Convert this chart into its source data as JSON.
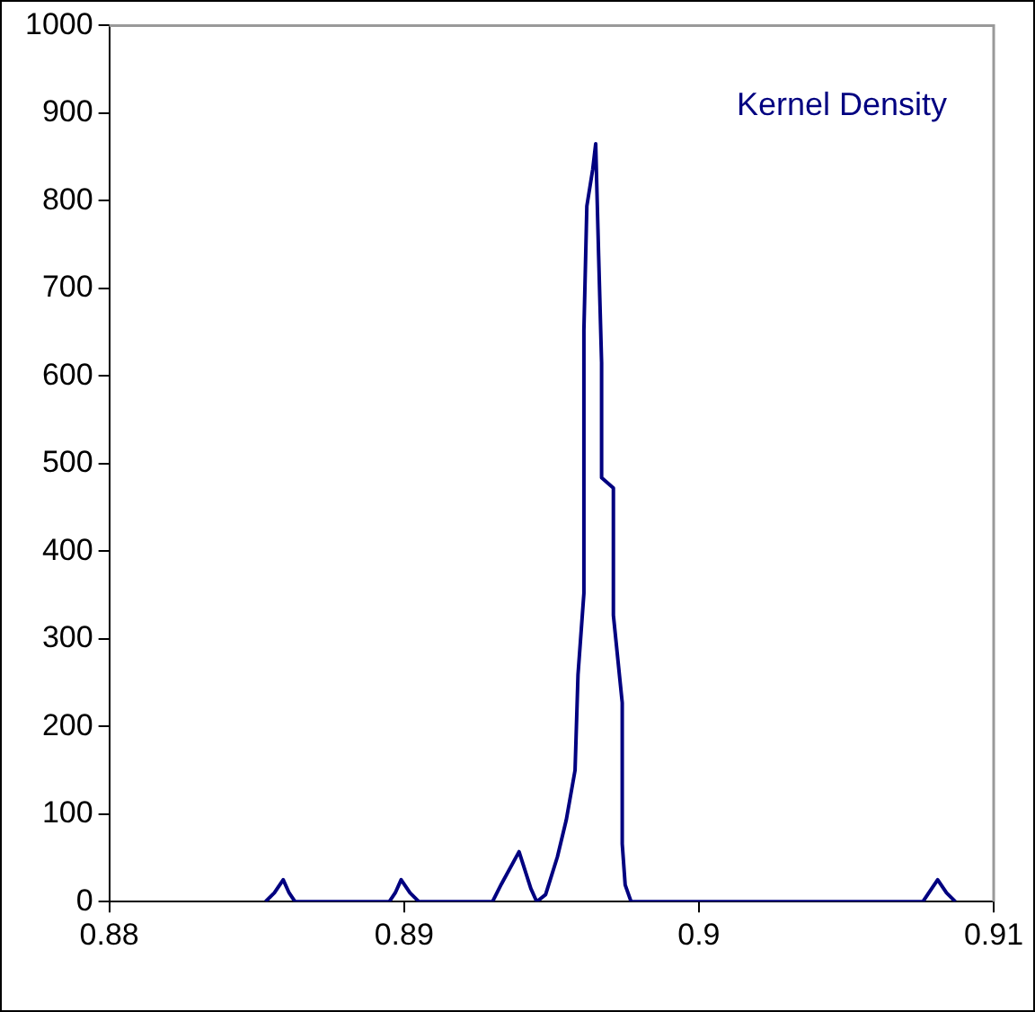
{
  "chart_data": {
    "type": "line",
    "x": [
      0.8853,
      0.8856,
      0.8859,
      0.8861,
      0.8863,
      0.8895,
      0.8897,
      0.8899,
      0.8902,
      0.8905,
      0.893,
      0.8933,
      0.8939,
      0.8943,
      0.8945,
      0.8948,
      0.8952,
      0.8955,
      0.8958,
      0.8959,
      0.8961,
      0.8961,
      0.8962,
      0.8964,
      0.8965,
      0.8966,
      0.8967,
      0.8967,
      0.8967,
      0.8971,
      0.8971,
      0.8974,
      0.8974,
      0.8975,
      0.8977,
      0.9076,
      0.9078,
      0.9081,
      0.9084,
      0.9087
    ],
    "series": [
      {
        "name": "Kernel Density",
        "color": "#000080",
        "values": [
          0,
          10,
          25,
          10,
          0,
          0,
          10,
          25,
          10,
          0,
          0,
          20,
          57,
          15,
          0,
          8,
          51,
          93,
          150,
          259,
          352,
          652,
          794,
          836,
          865,
          737,
          615,
          484,
          484,
          472,
          327,
          227,
          66,
          19,
          0,
          0,
          10,
          25,
          10,
          0
        ]
      }
    ],
    "xlim": [
      0.88,
      0.91
    ],
    "xticks": [
      0.88,
      0.89,
      0.9,
      0.91
    ],
    "ylim": [
      0,
      1000
    ],
    "yticks": [
      0,
      100,
      200,
      300,
      400,
      500,
      600,
      700,
      800,
      900,
      1000
    ],
    "grid": false,
    "legend": false,
    "marker": "none",
    "line_style": "solid"
  }
}
